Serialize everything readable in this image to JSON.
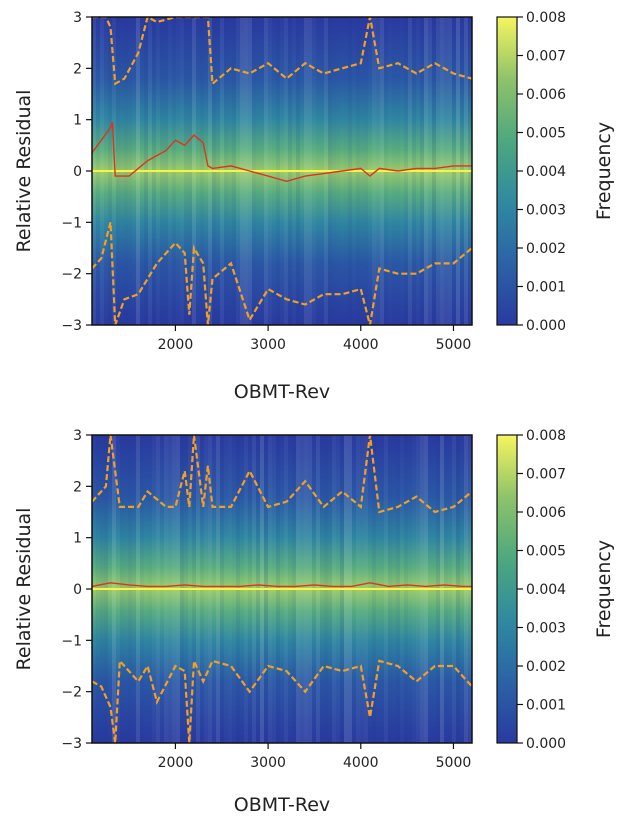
{
  "chart_data": [
    {
      "type": "heatmap",
      "title": "",
      "xlabel": "OBMT-Rev",
      "ylabel": "Relative Residual",
      "colorbar_label": "Frequency",
      "xlim": [
        1100,
        5200
      ],
      "ylim": [
        -3,
        3
      ],
      "x_ticks": [
        2000,
        3000,
        4000,
        5000
      ],
      "y_ticks": [
        -3,
        -2,
        -1,
        0,
        1,
        2,
        3
      ],
      "colorbar_range": [
        0,
        0.008
      ],
      "colorbar_ticks": [
        "0.000",
        "0.001",
        "0.002",
        "0.003",
        "0.004",
        "0.005",
        "0.006",
        "0.007",
        "0.008"
      ],
      "colormap": [
        "#2a3aa0",
        "#2b63a6",
        "#2f8aa0",
        "#4ea87e",
        "#8fc36a",
        "#f6f55e"
      ],
      "reference_line": {
        "y": 0,
        "color": "#f5f542"
      },
      "series": [
        {
          "role": "median",
          "color": "#e3321c",
          "style": "solid",
          "x": [
            1100,
            1200,
            1300,
            1320,
            1350,
            1500,
            1700,
            1900,
            2000,
            2100,
            2200,
            2300,
            2350,
            2400,
            2600,
            2800,
            3000,
            3200,
            3400,
            3600,
            3800,
            4000,
            4100,
            4200,
            4400,
            4600,
            4800,
            5000,
            5200
          ],
          "y": [
            0.35,
            0.6,
            0.85,
            0.95,
            -0.1,
            -0.1,
            0.2,
            0.4,
            0.6,
            0.5,
            0.7,
            0.55,
            0.1,
            0.05,
            0.1,
            0.0,
            -0.1,
            -0.2,
            -0.1,
            -0.05,
            0.0,
            0.05,
            -0.1,
            0.05,
            0.0,
            0.05,
            0.05,
            0.1,
            0.1
          ]
        },
        {
          "role": "upper-bound",
          "color": "#f2a024",
          "style": "dashed",
          "x": [
            1100,
            1250,
            1300,
            1350,
            1450,
            1600,
            1700,
            1800,
            2000,
            2100,
            2200,
            2300,
            2350,
            2400,
            2600,
            2800,
            3000,
            3200,
            3400,
            3600,
            3800,
            4000,
            4100,
            4200,
            4400,
            4600,
            4800,
            5000,
            5200
          ],
          "y": [
            3.0,
            3.0,
            2.8,
            1.7,
            1.8,
            2.3,
            3.0,
            2.9,
            3.0,
            3.0,
            3.0,
            3.0,
            3.0,
            1.7,
            2.0,
            1.9,
            2.1,
            1.8,
            2.1,
            1.9,
            2.0,
            2.1,
            3.0,
            2.0,
            2.1,
            1.9,
            2.1,
            1.9,
            1.8
          ]
        },
        {
          "role": "lower-bound",
          "color": "#f2a024",
          "style": "dashed",
          "x": [
            1100,
            1200,
            1300,
            1350,
            1450,
            1600,
            1800,
            1900,
            2000,
            2100,
            2150,
            2200,
            2300,
            2350,
            2400,
            2600,
            2800,
            3000,
            3200,
            3400,
            3600,
            3800,
            4000,
            4100,
            4200,
            4400,
            4600,
            4800,
            5000,
            5200
          ],
          "y": [
            -1.9,
            -1.7,
            -1.0,
            -3.0,
            -2.5,
            -2.4,
            -1.8,
            -1.6,
            -1.4,
            -1.6,
            -2.8,
            -1.5,
            -1.8,
            -3.0,
            -2.1,
            -1.8,
            -2.9,
            -2.3,
            -2.5,
            -2.6,
            -2.4,
            -2.4,
            -2.3,
            -3.0,
            -1.9,
            -2.0,
            -2.0,
            -1.8,
            -1.8,
            -1.5
          ]
        }
      ]
    },
    {
      "type": "heatmap",
      "title": "",
      "xlabel": "OBMT-Rev",
      "ylabel": "Relative Residual",
      "colorbar_label": "Frequency",
      "xlim": [
        1100,
        5200
      ],
      "ylim": [
        -3,
        3
      ],
      "x_ticks": [
        2000,
        3000,
        4000,
        5000
      ],
      "y_ticks": [
        -3,
        -2,
        -1,
        0,
        1,
        2,
        3
      ],
      "colorbar_range": [
        0,
        0.008
      ],
      "colorbar_ticks": [
        "0.000",
        "0.001",
        "0.002",
        "0.003",
        "0.004",
        "0.005",
        "0.006",
        "0.007",
        "0.008"
      ],
      "colormap": [
        "#2a3aa0",
        "#2b63a6",
        "#2f8aa0",
        "#4ea87e",
        "#8fc36a",
        "#f6f55e"
      ],
      "reference_line": {
        "y": 0,
        "color": "#f5f542"
      },
      "series": [
        {
          "role": "median",
          "color": "#e3321c",
          "style": "solid",
          "x": [
            1100,
            1300,
            1500,
            1700,
            1900,
            2100,
            2300,
            2500,
            2700,
            2900,
            3100,
            3300,
            3500,
            3700,
            3900,
            4100,
            4300,
            4500,
            4700,
            4900,
            5100,
            5200
          ],
          "y": [
            0.05,
            0.12,
            0.08,
            0.05,
            0.05,
            0.08,
            0.05,
            0.05,
            0.05,
            0.08,
            0.05,
            0.05,
            0.08,
            0.05,
            0.05,
            0.12,
            0.05,
            0.08,
            0.05,
            0.08,
            0.05,
            0.05
          ]
        },
        {
          "role": "upper-bound",
          "color": "#f2a024",
          "style": "dashed",
          "x": [
            1100,
            1250,
            1300,
            1400,
            1600,
            1700,
            1900,
            2000,
            2100,
            2150,
            2200,
            2300,
            2350,
            2400,
            2600,
            2800,
            3000,
            3200,
            3400,
            3600,
            3800,
            4000,
            4100,
            4200,
            4400,
            4600,
            4800,
            5000,
            5200
          ],
          "y": [
            1.7,
            2.0,
            3.0,
            1.6,
            1.6,
            1.9,
            1.6,
            1.6,
            2.3,
            1.6,
            3.0,
            1.6,
            2.4,
            1.6,
            1.6,
            2.3,
            1.6,
            1.7,
            2.1,
            1.6,
            1.9,
            1.6,
            3.0,
            1.5,
            1.6,
            1.8,
            1.5,
            1.6,
            1.9
          ]
        },
        {
          "role": "lower-bound",
          "color": "#f2a024",
          "style": "dashed",
          "x": [
            1100,
            1200,
            1300,
            1350,
            1400,
            1600,
            1700,
            1800,
            2000,
            2100,
            2150,
            2200,
            2300,
            2400,
            2600,
            2800,
            3000,
            3200,
            3400,
            3600,
            3800,
            4000,
            4100,
            4200,
            4400,
            4600,
            4800,
            5000,
            5200
          ],
          "y": [
            -1.8,
            -1.9,
            -2.3,
            -3.0,
            -1.4,
            -1.8,
            -1.5,
            -2.2,
            -1.5,
            -1.6,
            -3.0,
            -1.4,
            -1.8,
            -1.4,
            -1.5,
            -2.0,
            -1.5,
            -1.6,
            -2.0,
            -1.5,
            -1.6,
            -1.5,
            -2.5,
            -1.4,
            -1.5,
            -1.8,
            -1.5,
            -1.5,
            -1.9
          ]
        }
      ]
    }
  ]
}
